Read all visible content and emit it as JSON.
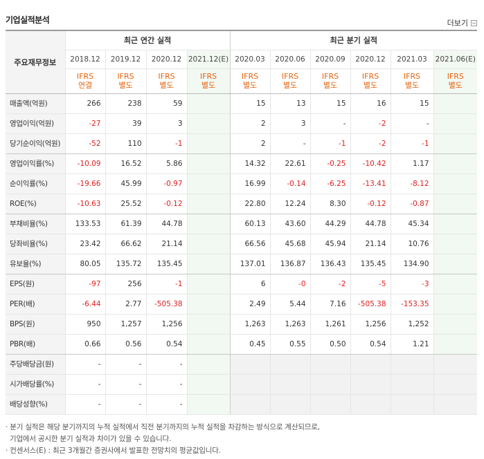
{
  "title": "기업실적분석",
  "more_label": "더보기",
  "header": {
    "row_label": "주요재무정보",
    "annual_group": "최근 연간 실적",
    "quarter_group": "최근 분기 실적",
    "periods": [
      "2018.12",
      "2019.12",
      "2020.12",
      "2021.12(E)",
      "2020.03",
      "2020.06",
      "2020.09",
      "2020.12",
      "2021.03",
      "2021.06(E)"
    ],
    "types": [
      [
        "IFRS",
        "연결"
      ],
      [
        "IFRS",
        "별도"
      ],
      [
        "IFRS",
        "별도"
      ],
      [
        "IFRS",
        "별도"
      ],
      [
        "IFRS",
        "별도"
      ],
      [
        "IFRS",
        "별도"
      ],
      [
        "IFRS",
        "별도"
      ],
      [
        "IFRS",
        "별도"
      ],
      [
        "IFRS",
        "별도"
      ],
      [
        "IFRS",
        "별도"
      ]
    ]
  },
  "rows": [
    {
      "label": "매출액(억원)",
      "values": [
        "266",
        "238",
        "59",
        "",
        "15",
        "13",
        "15",
        "16",
        "15",
        ""
      ]
    },
    {
      "label": "영업이익(억원)",
      "values": [
        "-27",
        "39",
        "3",
        "",
        "2",
        "3",
        "-",
        "-2",
        "-",
        ""
      ]
    },
    {
      "label": "당기순이익(억원)",
      "values": [
        "-52",
        "110",
        "-1",
        "",
        "2",
        "-",
        "-1",
        "-2",
        "-1",
        ""
      ]
    },
    {
      "label": "영업이익률(%)",
      "values": [
        "-10.09",
        "16.52",
        "5.86",
        "",
        "14.32",
        "22.61",
        "-0.25",
        "-10.42",
        "1.17",
        ""
      ]
    },
    {
      "label": "순이익률(%)",
      "values": [
        "-19.66",
        "45.99",
        "-0.97",
        "",
        "16.99",
        "-0.14",
        "-6.25",
        "-13.41",
        "-8.12",
        ""
      ]
    },
    {
      "label": "ROE(%)",
      "values": [
        "-10.63",
        "25.52",
        "-0.12",
        "",
        "22.80",
        "12.24",
        "8.30",
        "-0.12",
        "-0.87",
        ""
      ]
    },
    {
      "label": "부채비율(%)",
      "values": [
        "133.53",
        "61.39",
        "44.78",
        "",
        "60.13",
        "43.60",
        "44.29",
        "44.78",
        "45.34",
        ""
      ]
    },
    {
      "label": "당좌비율(%)",
      "values": [
        "23.42",
        "66.62",
        "21.14",
        "",
        "66.56",
        "45.68",
        "45.94",
        "21.14",
        "10.76",
        ""
      ]
    },
    {
      "label": "유보율(%)",
      "values": [
        "80.05",
        "135.72",
        "135.45",
        "",
        "137.01",
        "136.87",
        "136.43",
        "135.45",
        "134.90",
        ""
      ]
    },
    {
      "label": "EPS(원)",
      "values": [
        "-97",
        "256",
        "-1",
        "",
        "6",
        "-0",
        "-2",
        "-5",
        "-3",
        ""
      ]
    },
    {
      "label": "PER(배)",
      "values": [
        "-6.44",
        "2.77",
        "-505.38",
        "",
        "2.49",
        "5.44",
        "7.16",
        "-505.38",
        "-153.35",
        ""
      ]
    },
    {
      "label": "BPS(원)",
      "values": [
        "950",
        "1,257",
        "1,256",
        "",
        "1,263",
        "1,263",
        "1,261",
        "1,256",
        "1,252",
        ""
      ]
    },
    {
      "label": "PBR(배)",
      "values": [
        "0.66",
        "0.56",
        "0.54",
        "",
        "0.45",
        "0.55",
        "0.50",
        "0.54",
        "1.21",
        ""
      ]
    },
    {
      "label": "주당배당금(원)",
      "values": [
        "-",
        "-",
        "-",
        "",
        "",
        "",
        "",
        "",
        "",
        ""
      ]
    },
    {
      "label": "시가배당률(%)",
      "values": [
        "-",
        "-",
        "-",
        "",
        "",
        "",
        "",
        "",
        "",
        ""
      ]
    },
    {
      "label": "배당성향(%)",
      "values": [
        "-",
        "-",
        "-",
        "",
        "",
        "",
        "",
        "",
        "",
        ""
      ]
    }
  ],
  "notes": {
    "line1": "분기 실적은 해당 분기까지의 누적 실적에서 직전 분기까지의 누적 실적을 차감하는 방식으로 계산되므로,",
    "line2": "기업에서 공시한 분기 실적과 차이가 있을 수 있습니다.",
    "line3": "컨센서스(E) : 최근 3개월간 증권사에서 발표한 전망치의 평균값입니다."
  }
}
